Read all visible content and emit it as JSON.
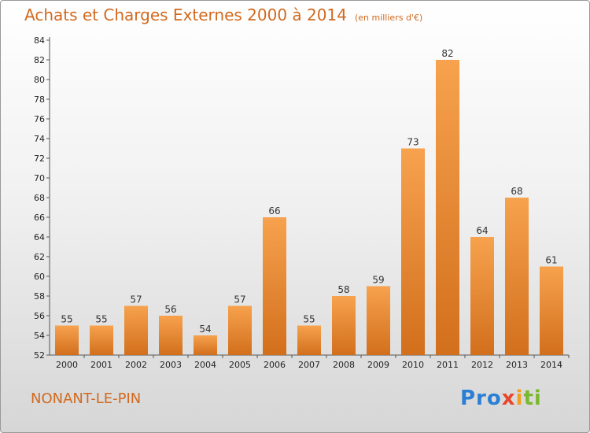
{
  "header": {
    "title": "Achats et Charges Externes 2000 à 2014",
    "subtitle": "(en milliers d'€)"
  },
  "footer": {
    "place": "NONANT-LE-PIN",
    "logo": [
      "Pro",
      "x",
      "i",
      "ti"
    ]
  },
  "colors": {
    "title": "#d2691e",
    "bar_top": "#f7a24e",
    "bar_bottom": "#d26f1c"
  },
  "chart_data": {
    "type": "bar",
    "title": "Achats et Charges Externes 2000 à 2014",
    "subtitle": "(en milliers d'€)",
    "categories": [
      "2000",
      "2001",
      "2002",
      "2003",
      "2004",
      "2005",
      "2006",
      "2007",
      "2008",
      "2009",
      "2010",
      "2011",
      "2012",
      "2013",
      "2014"
    ],
    "values": [
      55,
      55,
      57,
      56,
      54,
      57,
      66,
      55,
      58,
      59,
      73,
      82,
      64,
      68,
      61
    ],
    "ylim": [
      52,
      84
    ],
    "yticks": [
      52,
      54,
      56,
      58,
      60,
      62,
      64,
      66,
      68,
      70,
      72,
      74,
      76,
      78,
      80,
      82,
      84
    ],
    "grid": false,
    "data_labels": true
  }
}
